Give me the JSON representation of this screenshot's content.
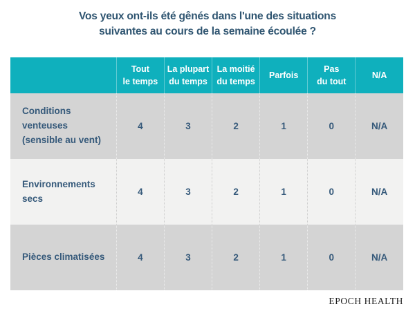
{
  "title": "Vos yeux ont-ils été gênés dans l'une des situations\nsuivantes au cours de la semaine écoulée ?",
  "chart_data": {
    "type": "table",
    "title": "Vos yeux ont-ils été gênés dans l'une des situations suivantes au cours de la semaine écoulée ?",
    "columns": [
      "Tout le temps",
      "La plupart du temps",
      "La moitié du temps",
      "Parfois",
      "Pas du tout",
      "N/A"
    ],
    "rows": [
      {
        "label": "Conditions venteuses (sensible au vent)",
        "values": [
          "4",
          "3",
          "2",
          "1",
          "0",
          "N/A"
        ]
      },
      {
        "label": "Environnements secs",
        "values": [
          "4",
          "3",
          "2",
          "1",
          "0",
          "N/A"
        ]
      },
      {
        "label": "Pièces climatisées",
        "values": [
          "4",
          "3",
          "2",
          "1",
          "0",
          "N/A"
        ]
      }
    ],
    "layout": {
      "header_position": "top",
      "row_striping": [
        "dark",
        "light",
        "dark"
      ],
      "grid": "dotted-column-separators"
    }
  },
  "display": {
    "column_labels": [
      "Tout\nle temps",
      "La plupart\ndu temps",
      "La moitié\ndu temps",
      "Parfois",
      "Pas\ndu tout",
      "N/A"
    ],
    "row_labels": [
      "Conditions venteuses\n(sensible au vent)",
      "Environnements\nsecs",
      "Pièces climatisées"
    ]
  },
  "footer": {
    "brand": "EPOCH HEALTH"
  },
  "colors": {
    "header_teal": "#0fb0bd",
    "row_dark_gray": "#d4d4d4",
    "row_light_gray": "#f2f2f1",
    "text_slate_blue": "#2e5470",
    "header_text": "#ffffff",
    "brand_text": "#1d1d1d",
    "page_background": "#ffffff"
  }
}
